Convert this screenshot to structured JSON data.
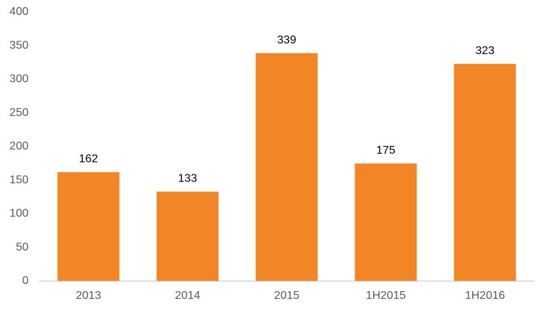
{
  "chart_data": {
    "type": "bar",
    "categories": [
      "2013",
      "2014",
      "2015",
      "1H2015",
      "1H2016"
    ],
    "values": [
      162,
      133,
      339,
      175,
      323
    ],
    "color": "#f28626",
    "ylim": [
      0,
      400
    ],
    "yticks": [
      0,
      50,
      100,
      150,
      200,
      250,
      300,
      350,
      400
    ],
    "grid": false
  }
}
